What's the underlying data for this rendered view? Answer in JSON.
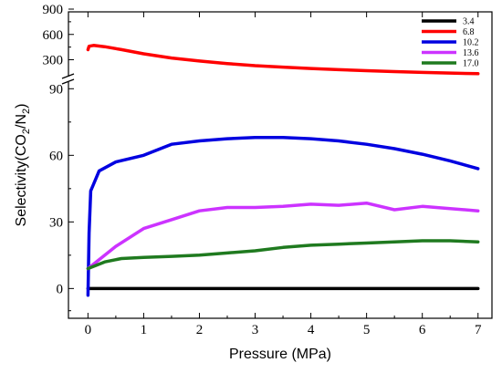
{
  "chart_data": {
    "type": "line",
    "title": "",
    "xlabel": "Pressure (MPa)",
    "ylabel": "Selectivity(CO2/N2)",
    "ylabel_parts": {
      "main": "Selectivity(CO",
      "sub1": "2",
      "slash": "/N",
      "sub2": "2",
      "close": ")"
    },
    "xlim": [
      -0.35,
      7.25
    ],
    "xticks": [
      0,
      1,
      2,
      3,
      4,
      5,
      6,
      7
    ],
    "broken_y_axis": true,
    "ylim_upper": [
      100,
      900
    ],
    "yticks_upper": [
      300,
      600,
      900
    ],
    "ylim_lower": [
      -13,
      93
    ],
    "yticks_lower": [
      0,
      30,
      60,
      90
    ],
    "legend_position": "top-right",
    "grid": false,
    "series": [
      {
        "name": "3.4",
        "color": "#000000",
        "panel": "lower",
        "x": [
          0,
          0.5,
          1,
          2,
          3,
          4,
          5,
          6,
          7
        ],
        "y": [
          0,
          0,
          0,
          0,
          0,
          0,
          0,
          0,
          0
        ]
      },
      {
        "name": "6.8",
        "color": "#ff0000",
        "panel": "upper",
        "x": [
          0,
          0.02,
          0.1,
          0.3,
          0.6,
          1,
          1.5,
          2,
          2.5,
          3,
          3.5,
          4,
          4.5,
          5,
          5.5,
          6,
          6.5,
          7
        ],
        "y": [
          420,
          460,
          470,
          455,
          420,
          370,
          320,
          285,
          255,
          230,
          212,
          196,
          182,
          170,
          160,
          150,
          142,
          135
        ]
      },
      {
        "name": "10.2",
        "color": "#0000e0",
        "panel": "lower",
        "x": [
          0,
          0.02,
          0.05,
          0.1,
          0.2,
          0.5,
          1,
          1.5,
          2,
          2.5,
          3,
          3.5,
          4,
          4.5,
          5,
          5.5,
          6,
          6.5,
          7
        ],
        "y": [
          -3,
          25,
          44,
          47,
          53,
          57,
          60,
          65,
          66.5,
          67.5,
          68,
          68,
          67.5,
          66.5,
          65,
          63,
          60.5,
          57.5,
          54
        ]
      },
      {
        "name": "13.6",
        "color": "#cc33ff",
        "panel": "lower",
        "x": [
          0,
          0.5,
          1,
          1.5,
          2,
          2.5,
          3,
          3.5,
          4,
          4.5,
          5,
          5.5,
          6,
          6.5,
          7
        ],
        "y": [
          9,
          19,
          27,
          31,
          35,
          36.5,
          36.5,
          37,
          38,
          37.5,
          38.5,
          35.5,
          37,
          36,
          35
        ]
      },
      {
        "name": "17.0",
        "color": "#1f7a1f",
        "panel": "lower",
        "x": [
          0,
          0.3,
          0.6,
          1,
          1.5,
          2,
          2.5,
          3,
          3.5,
          4,
          4.5,
          5,
          5.5,
          6,
          6.5,
          7
        ],
        "y": [
          9,
          12,
          13.5,
          14,
          14.5,
          15,
          16,
          17,
          18.5,
          19.5,
          20,
          20.5,
          21,
          21.5,
          21.5,
          21
        ]
      }
    ]
  }
}
